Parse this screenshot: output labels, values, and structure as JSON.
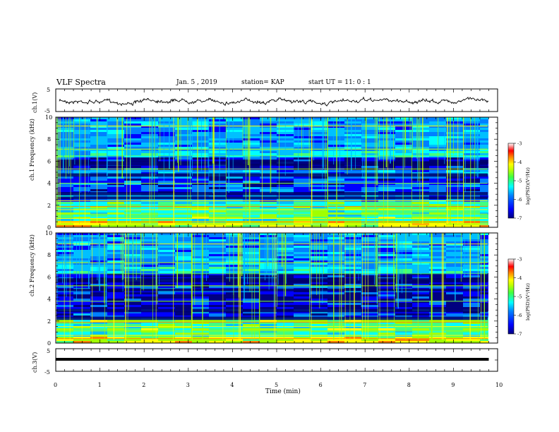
{
  "header": {
    "title": "VLF Spectra",
    "date": "Jan. 5 , 2019",
    "station": "station= KAP",
    "start_ut": "start UT =  11: 0  : 1"
  },
  "colors": {
    "colormap": [
      "#000080",
      "#0000ff",
      "#0080ff",
      "#00c0ff",
      "#00ffff",
      "#40ff80",
      "#a0ff00",
      "#ffff00",
      "#ff8000",
      "#ff0000",
      "#ffffff"
    ]
  },
  "chart_data": [
    {
      "type": "line",
      "panel": "ch1-waveform",
      "ylabel": "ch.1(V)",
      "ylim": [
        -5,
        5
      ],
      "y_ticks": [
        "5",
        "-5"
      ],
      "xlim": [
        0,
        10
      ],
      "series_description": "noisy waveform around about 0 V with amplitude about ±1.5 V, 0 to 9.8 min"
    },
    {
      "type": "heatmap",
      "panel": "ch1-spectrogram",
      "ylabel": "ch.1\nFrequency (kHz)",
      "ylim": [
        0,
        10
      ],
      "y_ticks": [
        "0",
        "2",
        "4",
        "6",
        "8",
        "10"
      ],
      "xlim": [
        0,
        10
      ],
      "colorbar": {
        "label": "log(PSD)(V²/Hz)",
        "range": [
          -7,
          -3
        ],
        "ticks": [
          "-3",
          "-4",
          "-5",
          "-6",
          "-7"
        ]
      }
    },
    {
      "type": "heatmap",
      "panel": "ch2-spectrogram",
      "ylabel": "ch.2\nFrequency (kHz)",
      "ylim": [
        0,
        10
      ],
      "y_ticks": [
        "0",
        "2",
        "4",
        "6",
        "8",
        "10"
      ],
      "xlim": [
        0,
        10
      ],
      "colorbar": {
        "label": "log(PSD)(V²/Hz)",
        "range": [
          -7,
          -3
        ],
        "ticks": [
          "-3",
          "-4",
          "-5",
          "-6",
          "-7"
        ]
      }
    },
    {
      "type": "line",
      "panel": "ch3-waveform",
      "ylabel": "ch.3(V)",
      "ylim": [
        -5,
        5
      ],
      "y_ticks": [
        "5",
        "0",
        "-5"
      ],
      "xlim": [
        0,
        10
      ],
      "x": [
        0,
        9.8
      ],
      "y": [
        0.3,
        0.3
      ]
    }
  ],
  "x_axis": {
    "label": "Time (min)",
    "ticks": [
      "0",
      "1",
      "2",
      "3",
      "4",
      "5",
      "6",
      "7",
      "8",
      "9",
      "10"
    ]
  }
}
